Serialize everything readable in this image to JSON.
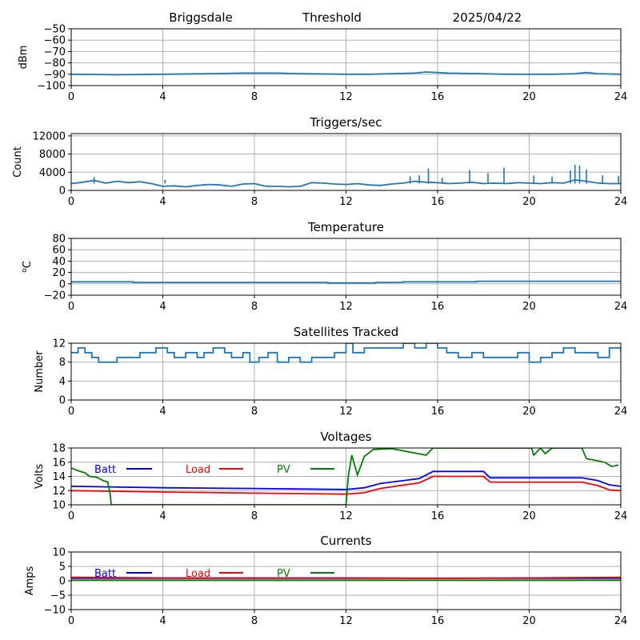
{
  "header": {
    "station": "Briggsdale",
    "mode": "Threshold",
    "date": "2025/04/22"
  },
  "chart_data": [
    {
      "type": "line",
      "title": "",
      "xlabel": "",
      "ylabel": "dBm",
      "xlim": [
        0,
        24
      ],
      "ylim": [
        -100,
        -50
      ],
      "xticks": [
        0,
        4,
        8,
        12,
        16,
        20,
        24
      ],
      "yticks": [
        -100,
        -90,
        -80,
        -70,
        -60,
        -50
      ],
      "grid": true,
      "series": [
        {
          "color": "#1f77b4",
          "x": [
            0,
            2,
            4,
            6,
            7.5,
            9,
            10,
            12,
            13,
            14,
            15,
            15.5,
            16,
            16.5,
            18,
            19,
            20,
            21,
            22,
            22.5,
            23,
            24
          ],
          "y": [
            -90,
            -90.5,
            -90,
            -89.5,
            -89,
            -89,
            -89.5,
            -90,
            -90,
            -89.5,
            -89,
            -88,
            -88.5,
            -89,
            -89.5,
            -90,
            -90,
            -90,
            -89.5,
            -88.5,
            -89.5,
            -90
          ]
        }
      ]
    },
    {
      "type": "line",
      "title": "Triggers/sec",
      "xlabel": "",
      "ylabel": "Count",
      "xlim": [
        0,
        24
      ],
      "ylim": [
        0,
        12500
      ],
      "xticks": [
        0,
        4,
        8,
        12,
        16,
        20,
        24
      ],
      "yticks": [
        0,
        4000,
        8000,
        12000
      ],
      "grid": true,
      "series": [
        {
          "color": "#1f77b4",
          "x": [
            0,
            0.5,
            1,
            1.5,
            2,
            2.5,
            3,
            3.5,
            4,
            4.5,
            5,
            5.5,
            6,
            6.5,
            7,
            7.5,
            8,
            8.5,
            9,
            9.5,
            10,
            10.5,
            11,
            11.5,
            12,
            12.5,
            13,
            13.5,
            14,
            14.5,
            15,
            15.5,
            16,
            16.5,
            17,
            17.5,
            18,
            18.5,
            19,
            19.5,
            20,
            20.5,
            21,
            21.5,
            22,
            22.5,
            23,
            23.5,
            24
          ],
          "y": [
            1500,
            1800,
            2200,
            1600,
            2000,
            1700,
            1900,
            1500,
            900,
            1000,
            800,
            1100,
            1300,
            1200,
            900,
            1400,
            1500,
            900,
            900,
            800,
            900,
            1700,
            1600,
            1400,
            1300,
            1500,
            1200,
            1100,
            1400,
            1600,
            2000,
            1800,
            1700,
            1500,
            1600,
            1800,
            1500,
            1600,
            1500,
            1700,
            1600,
            1500,
            1700,
            1600,
            2300,
            2000,
            1600,
            1500,
            1500
          ]
        },
        {
          "color": "#1f77b4",
          "x": [
            1.0,
            4.1,
            14.8,
            15.2,
            15.6,
            16.2,
            17.4,
            18.2,
            18.9,
            20.2,
            21.0,
            21.8,
            22.0,
            22.2,
            22.5,
            23.2,
            23.9
          ],
          "y": [
            2900,
            2300,
            3100,
            3300,
            4800,
            2800,
            4500,
            3800,
            5000,
            3300,
            3000,
            4400,
            5600,
            5500,
            4600,
            3300,
            3200
          ]
        }
      ]
    },
    {
      "type": "line",
      "title": "Temperature",
      "xlabel": "",
      "ylabel": "°C",
      "ylabel_sup": "o",
      "ylabel_base": "C",
      "xlim": [
        0,
        24
      ],
      "ylim": [
        -20,
        80
      ],
      "xticks": [
        0,
        4,
        8,
        12,
        16,
        20,
        24
      ],
      "yticks": [
        -20,
        0,
        20,
        40,
        60,
        80
      ],
      "grid": true,
      "series": [
        {
          "color": "#1f77b4",
          "x": [
            0,
            2.7,
            2.7,
            11.2,
            11.2,
            13.3,
            13.3,
            14.5,
            14.5,
            17.7,
            17.7,
            24
          ],
          "y": [
            3.5,
            3.5,
            2.5,
            2.5,
            1.5,
            1.5,
            2.5,
            2.5,
            3.5,
            3.5,
            4.5,
            4.5
          ]
        }
      ]
    },
    {
      "type": "line",
      "title": "Satellites Tracked",
      "xlabel": "",
      "ylabel": "Number",
      "xlim": [
        0,
        24
      ],
      "ylim": [
        0,
        12
      ],
      "xticks": [
        0,
        4,
        8,
        12,
        16,
        20,
        24
      ],
      "yticks": [
        0,
        4,
        8,
        12
      ],
      "grid": true,
      "step": true,
      "series": [
        {
          "color": "#1f77b4",
          "x": [
            0,
            0.3,
            0.6,
            0.9,
            1.2,
            1.5,
            2.0,
            2.5,
            3.0,
            3.3,
            3.7,
            4.2,
            4.5,
            5.0,
            5.5,
            5.8,
            6.2,
            6.7,
            7.0,
            7.5,
            7.8,
            8.2,
            8.6,
            9.0,
            9.5,
            10.0,
            10.5,
            11.0,
            11.5,
            12.0,
            12.3,
            12.8,
            13.2,
            13.8,
            14.5,
            15.0,
            15.5,
            16.0,
            16.4,
            16.9,
            17.5,
            18.0,
            18.5,
            19.5,
            20.0,
            20.5,
            21.0,
            21.5,
            22.0,
            22.5,
            23.0,
            23.5,
            24
          ],
          "y": [
            10,
            11,
            10,
            9,
            8,
            8,
            9,
            9,
            10,
            10,
            11,
            10,
            9,
            10,
            9,
            10,
            11,
            10,
            9,
            10,
            8,
            9,
            10,
            8,
            9,
            8,
            9,
            9,
            10,
            12,
            10,
            11,
            11,
            11,
            12,
            11,
            12,
            11,
            10,
            9,
            10,
            9,
            9,
            10,
            8,
            9,
            10,
            11,
            10,
            10,
            9,
            11,
            10
          ]
        }
      ]
    },
    {
      "type": "line",
      "title": "Voltages",
      "xlabel": "",
      "ylabel": "Volts",
      "xlim": [
        0,
        24
      ],
      "ylim": [
        10,
        18
      ],
      "xticks": [
        0,
        4,
        8,
        12,
        16,
        20,
        24
      ],
      "yticks": [
        10,
        12,
        14,
        16,
        18
      ],
      "grid": true,
      "legend": "top",
      "series": [
        {
          "name": "Batt",
          "color": "#0000ff",
          "x": [
            0,
            4,
            8,
            12,
            12.8,
            13.5,
            15.2,
            15.8,
            18.0,
            18.3,
            22.3,
            23.0,
            23.5,
            24
          ],
          "y": [
            12.6,
            12.4,
            12.3,
            12.15,
            12.4,
            13.0,
            13.7,
            14.7,
            14.7,
            13.8,
            13.8,
            13.4,
            12.8,
            12.6
          ]
        },
        {
          "name": "Load",
          "color": "#ff0000",
          "x": [
            0,
            4,
            8,
            12,
            12.8,
            13.5,
            15.2,
            15.8,
            18.0,
            18.3,
            22.3,
            23.0,
            23.5,
            24
          ],
          "y": [
            12.0,
            11.8,
            11.65,
            11.5,
            11.7,
            12.3,
            13.1,
            14.0,
            14.0,
            13.2,
            13.2,
            12.7,
            12.1,
            12.0
          ]
        },
        {
          "name": "PV",
          "color": "#008000",
          "x": [
            0,
            0.3,
            0.6,
            0.8,
            1.1,
            1.4,
            1.6,
            1.7,
            1.75,
            12.0,
            12.1,
            12.25,
            12.5,
            12.8,
            13.2,
            14.0,
            15.0,
            15.5,
            15.8,
            20.1,
            20.2,
            20.5,
            20.7,
            21.0,
            22.3,
            22.5,
            23.3,
            23.6,
            23.9
          ],
          "y": [
            15.2,
            14.8,
            14.5,
            14.0,
            13.9,
            13.4,
            13.2,
            11.5,
            10.0,
            10.0,
            14.0,
            17.0,
            14.2,
            16.8,
            17.8,
            17.9,
            17.3,
            17.0,
            18.0,
            18.0,
            17.0,
            18.0,
            17.2,
            18.0,
            18.0,
            16.5,
            16.0,
            15.4,
            15.6
          ]
        }
      ]
    },
    {
      "type": "line",
      "title": "Currents",
      "xlabel": "",
      "ylabel": "Amps",
      "xlim": [
        0,
        24
      ],
      "ylim": [
        -10,
        10
      ],
      "xticks": [
        0,
        4,
        8,
        12,
        16,
        20,
        24
      ],
      "yticks": [
        -10,
        -5,
        0,
        5,
        10
      ],
      "grid": true,
      "legend": "top",
      "series": [
        {
          "name": "Batt",
          "color": "#0000ff",
          "x": [
            0,
            24
          ],
          "y": [
            0.9,
            0.9
          ]
        },
        {
          "name": "Load",
          "color": "#ff0000",
          "x": [
            0,
            4,
            8,
            12,
            16,
            20,
            22,
            24
          ],
          "y": [
            1.2,
            1.0,
            1.0,
            1.0,
            0.9,
            1.0,
            1.1,
            1.2
          ]
        },
        {
          "name": "PV",
          "color": "#008000",
          "x": [
            0,
            24
          ],
          "y": [
            0.2,
            0.2
          ]
        }
      ]
    }
  ]
}
